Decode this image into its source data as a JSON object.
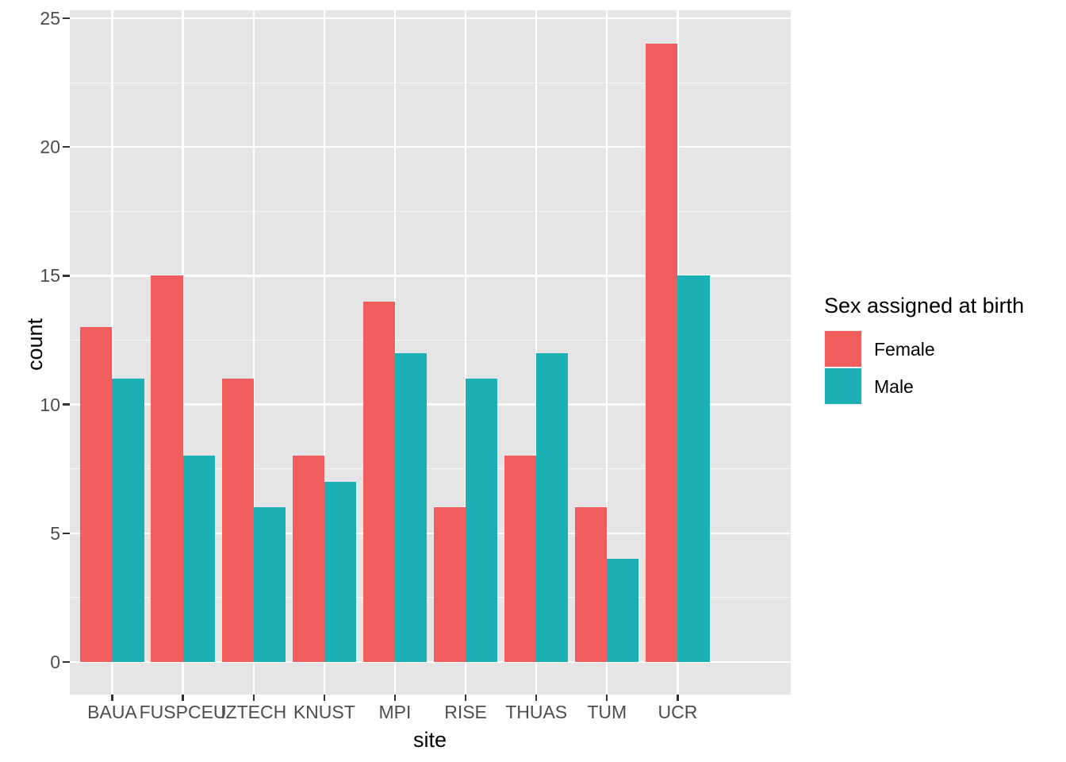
{
  "chart_data": {
    "type": "bar",
    "subtype": "grouped-dodge",
    "title": "",
    "xlabel": "site",
    "ylabel": "count",
    "categories": [
      "BAUA",
      "FUSPCEU",
      "IZTECH",
      "KNUST",
      "MPI",
      "RISE",
      "THUAS",
      "TUM",
      "UCR"
    ],
    "series": [
      {
        "name": "Female",
        "color": "#F25D5E",
        "values": [
          13,
          15,
          11,
          8,
          14,
          6,
          8,
          6,
          24
        ]
      },
      {
        "name": "Male",
        "color": "#1BB0B4",
        "values": [
          11,
          8,
          6,
          7,
          12,
          11,
          12,
          4,
          15
        ]
      }
    ],
    "legend_title": "Sex assigned at birth",
    "legend_position": "right",
    "y_ticks": [
      0,
      5,
      10,
      15,
      20,
      25
    ],
    "y_minor_ticks": [
      2.5,
      7.5,
      12.5,
      17.5,
      22.5
    ],
    "ylim": [
      -1.3,
      25.3
    ],
    "grid": "on",
    "panel_bg": "#E5E5E5",
    "grid_color": "#FFFFFF",
    "tick_label_color": "#4D4D4D",
    "tick_mark_color": "#333333"
  }
}
